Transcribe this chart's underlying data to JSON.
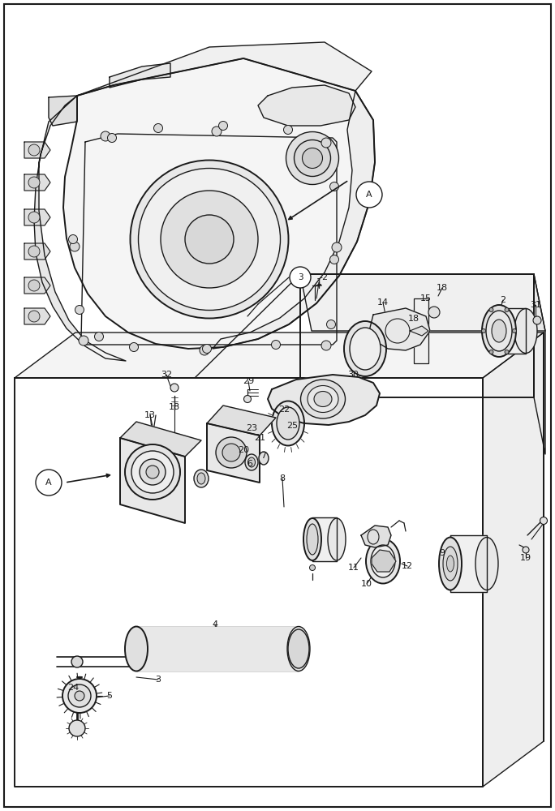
{
  "bg": "#ffffff",
  "lc": "#1a1a1a",
  "fig_w": 6.84,
  "fig_h": 10.0,
  "dpi": 100
}
